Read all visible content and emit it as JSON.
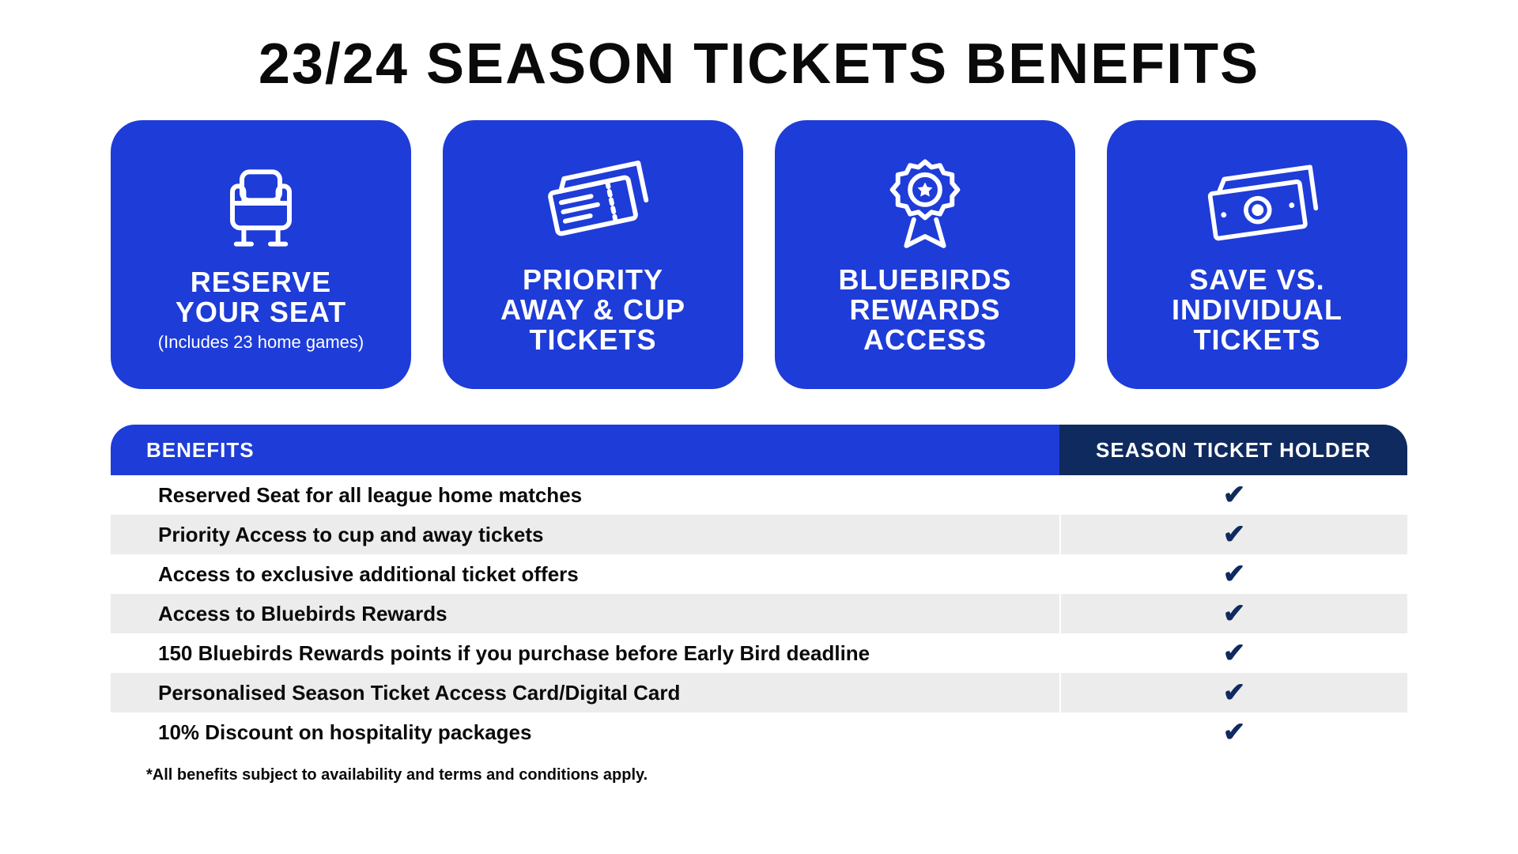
{
  "title": "23/24 SEASON TICKETS BENEFITS",
  "colors": {
    "card_bg": "#1e3cd8",
    "header_left_bg": "#1e3cd8",
    "header_right_bg": "#0f2a5e",
    "row_odd_bg": "#ffffff",
    "row_even_bg": "#ececec",
    "check_color": "#0f2a5e",
    "text_dark": "#0a0a0a",
    "white": "#ffffff"
  },
  "cards": [
    {
      "label": "RESERVE\nYOUR SEAT",
      "sub": "(Includes 23 home games)",
      "icon": "seat"
    },
    {
      "label": "PRIORITY\nAWAY & CUP\nTICKETS",
      "sub": "",
      "icon": "tickets"
    },
    {
      "label": "BLUEBIRDS\nREWARDS\nACCESS",
      "sub": "",
      "icon": "badge"
    },
    {
      "label": "SAVE VS.\nINDIVIDUAL\nTICKETS",
      "sub": "",
      "icon": "money"
    }
  ],
  "table": {
    "header_left": "BENEFITS",
    "header_right": "SEASON TICKET HOLDER",
    "rows": [
      {
        "text": "Reserved Seat for all league home matches",
        "check": true
      },
      {
        "text": "Priority Access to cup and away tickets",
        "check": true
      },
      {
        "text": "Access to exclusive additional ticket offers",
        "check": true
      },
      {
        "text": "Access to Bluebirds Rewards",
        "check": true
      },
      {
        "text": "150 Bluebirds Rewards points if you purchase before Early Bird deadline",
        "check": true
      },
      {
        "text": "Personalised Season Ticket Access Card/Digital Card",
        "check": true
      },
      {
        "text": "10% Discount on hospitality packages",
        "check": true
      }
    ]
  },
  "disclaimer": "*All benefits subject to availability and terms and conditions apply."
}
